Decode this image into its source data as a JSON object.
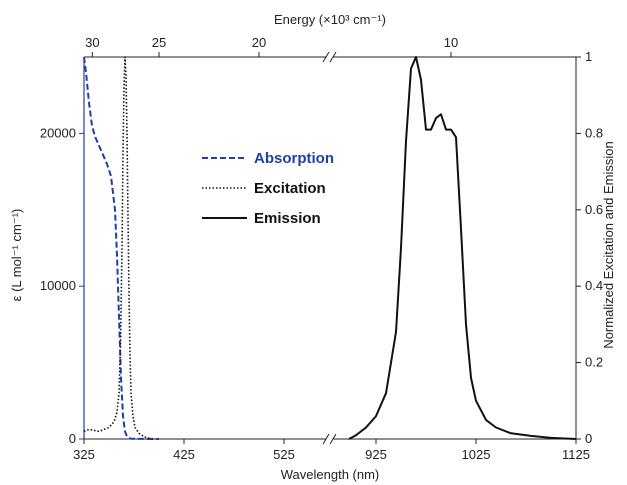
{
  "chart_data": {
    "type": "line",
    "top_axis": {
      "label": "Energy (×10³ cm⁻¹)",
      "tick_labels": [
        "30",
        "25",
        "20",
        "10"
      ],
      "tick_values_kcm": [
        30,
        25,
        20,
        10
      ]
    },
    "bottom_axis": {
      "label": "Wavelength (nm)",
      "tick_labels": [
        "325",
        "425",
        "525",
        "925",
        "1025",
        "1125"
      ],
      "segments": [
        {
          "range": [
            325,
            572
          ]
        },
        {
          "range": [
            876,
            1125
          ]
        }
      ],
      "axis_break": true
    },
    "left_axis": {
      "label": "ε (L mol⁻¹ cm⁻¹)",
      "color": "#1f3fa8",
      "range": [
        0,
        25000
      ],
      "tick_labels": [
        "0",
        "10000",
        "20000"
      ],
      "tick_values": [
        0,
        10000,
        20000
      ]
    },
    "right_axis": {
      "label": "Normalized Excitation and Emission",
      "range": [
        0,
        1
      ],
      "tick_labels": [
        "0",
        "0.2",
        "0.4",
        "0.6",
        "0.8",
        "1"
      ],
      "tick_values": [
        0,
        0.2,
        0.4,
        0.6,
        0.8,
        1
      ]
    },
    "legend": {
      "placement": "center-left",
      "entries": [
        {
          "label": "Absorption",
          "style": "dashed",
          "color": "#1f3fa8"
        },
        {
          "label": "Excitation",
          "style": "dotted",
          "color": "#111111"
        },
        {
          "label": "Emission",
          "style": "solid",
          "color": "#111111"
        }
      ]
    },
    "series": [
      {
        "name": "Absorption",
        "axis": "left",
        "x": [
          325,
          327,
          330,
          333,
          336,
          340,
          344,
          348,
          352,
          356,
          358,
          360,
          362,
          364,
          366,
          368,
          370,
          372,
          380,
          400
        ],
        "y": [
          25000,
          24000,
          22000,
          20500,
          19800,
          19200,
          18600,
          18000,
          17200,
          15000,
          12000,
          8000,
          4000,
          1500,
          500,
          150,
          60,
          20,
          5,
          0
        ]
      },
      {
        "name": "Excitation",
        "axis": "right",
        "x": [
          325,
          330,
          340,
          350,
          355,
          358,
          360,
          361.5,
          363,
          364,
          365,
          366,
          367,
          368,
          369,
          370,
          371,
          372,
          374,
          376,
          380,
          385,
          390,
          395
        ],
        "y": [
          0.02,
          0.025,
          0.02,
          0.03,
          0.045,
          0.07,
          0.12,
          0.25,
          0.5,
          0.75,
          0.92,
          1.0,
          0.95,
          0.8,
          0.58,
          0.38,
          0.22,
          0.12,
          0.06,
          0.03,
          0.015,
          0.006,
          0.002,
          0
        ]
      },
      {
        "name": "Emission",
        "axis": "right",
        "x": [
          898,
          905,
          915,
          925,
          935,
          945,
          950,
          955,
          960,
          965,
          970,
          975,
          980,
          985,
          990,
          995,
          1000,
          1005,
          1010,
          1015,
          1020,
          1025,
          1035,
          1045,
          1060,
          1080,
          1100,
          1125
        ],
        "y": [
          0,
          0.01,
          0.03,
          0.06,
          0.12,
          0.28,
          0.5,
          0.78,
          0.97,
          1.0,
          0.94,
          0.81,
          0.81,
          0.84,
          0.85,
          0.81,
          0.81,
          0.79,
          0.55,
          0.3,
          0.16,
          0.1,
          0.05,
          0.03,
          0.015,
          0.008,
          0.003,
          0
        ]
      }
    ]
  }
}
